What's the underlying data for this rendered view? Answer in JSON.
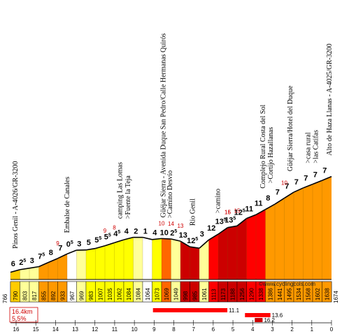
{
  "chart_data": {
    "type": "area",
    "x_unit": "km remaining",
    "x_ticks": [
      16,
      15,
      14,
      13,
      12,
      11,
      10,
      9,
      8,
      7,
      6,
      5,
      4,
      3,
      2,
      1,
      0
    ],
    "start_elevation": 766,
    "end_elevation": 1674,
    "elevations": [
      790,
      803,
      817,
      855,
      892,
      933,
      967,
      969,
      983,
      1007,
      1035,
      1062,
      1084,
      1084,
      1064,
      1073,
      1069,
      1049,
      998,
      985,
      1061,
      1113,
      1173,
      1188,
      1256,
      1290,
      1338,
      1386,
      1441,
      1495,
      1534,
      1568,
      1602,
      1638
    ],
    "segment_gradients": [
      {
        "main": "6",
        "sup": ""
      },
      {
        "main": "2",
        "sup": "5"
      },
      {
        "main": "3",
        "sup": ""
      },
      {
        "main": "7",
        "sup": "5"
      },
      {
        "main": "8",
        "sup": ""
      },
      {
        "main": "7",
        "sup": ""
      },
      {
        "main": "0",
        "sup": "5"
      },
      {
        "main": "3",
        "sup": ""
      },
      {
        "main": "5",
        "sup": ""
      },
      {
        "main": "5",
        "sup": "5"
      },
      {
        "main": "5",
        "sup": "5"
      },
      {
        "main": "4",
        "sup": "5"
      },
      {
        "main": "4",
        "sup": ""
      },
      {
        "main": "2",
        "sup": ""
      },
      {
        "main": "1",
        "sup": ""
      },
      {
        "main": "4",
        "sup": ""
      },
      {
        "main": "10",
        "sup": ""
      },
      {
        "main": "2",
        "sup": "5"
      },
      {
        "main": "13",
        "sup": ""
      },
      {
        "main": "12",
        "sup": "5"
      },
      {
        "main": "3",
        "sup": ""
      },
      {
        "main": "12",
        "sup": ""
      },
      {
        "main": "13",
        "sup": "5"
      },
      {
        "main": "13",
        "sup": "5"
      },
      {
        "main": "12",
        "sup": "5"
      },
      {
        "main": "11",
        "sup": ""
      },
      {
        "main": "11",
        "sup": ""
      },
      {
        "main": "8",
        "sup": ""
      },
      {
        "main": "7",
        "sup": ""
      },
      {
        "main": "7",
        "sup": ""
      },
      {
        "main": "7",
        "sup": ""
      },
      {
        "main": "7",
        "sup": ""
      },
      {
        "main": "7",
        "sup": ""
      }
    ],
    "max_gradients": [
      "9",
      "9",
      "8",
      "10",
      "14",
      "13",
      "15",
      "16",
      "15",
      "10"
    ],
    "pois": [
      "Pinos Genil - A-4026/GR-3200",
      "Embalse de Canales",
      "camping Las Lomas",
      "Fuente la Teja",
      "Güéjar Sierra - Avenida Duque San Pedro/Calle Hermanas Quirós",
      "Camino Desvío",
      "Rio Genil",
      "camino",
      "Complejo Rural Costa del Sol",
      "Cortijo Hazallanas",
      "Güéjar Sierra/Hotel del Duque",
      "casa rural",
      "las Catifas",
      "Alto de Haza Llanas - A-4025/GR-3200"
    ],
    "summary": {
      "distance": "16.4km",
      "avg_gradient": "5.5%"
    },
    "steep_bars": [
      {
        "label": "11.1"
      },
      {
        "label": "13.6"
      },
      {
        "label": "16.2"
      }
    ],
    "watermark": "©www.cyclingcols.com",
    "colors": {
      "pale_yellow": "#ffff99",
      "yellow": "#ffff00",
      "gold": "#ffcc00",
      "orange": "#ff9900",
      "dark_orange": "#ff6600",
      "red": "#ff0000",
      "dark_red": "#cc0000",
      "max_red": "#dd0000",
      "pink_line": "#ff3399"
    }
  }
}
